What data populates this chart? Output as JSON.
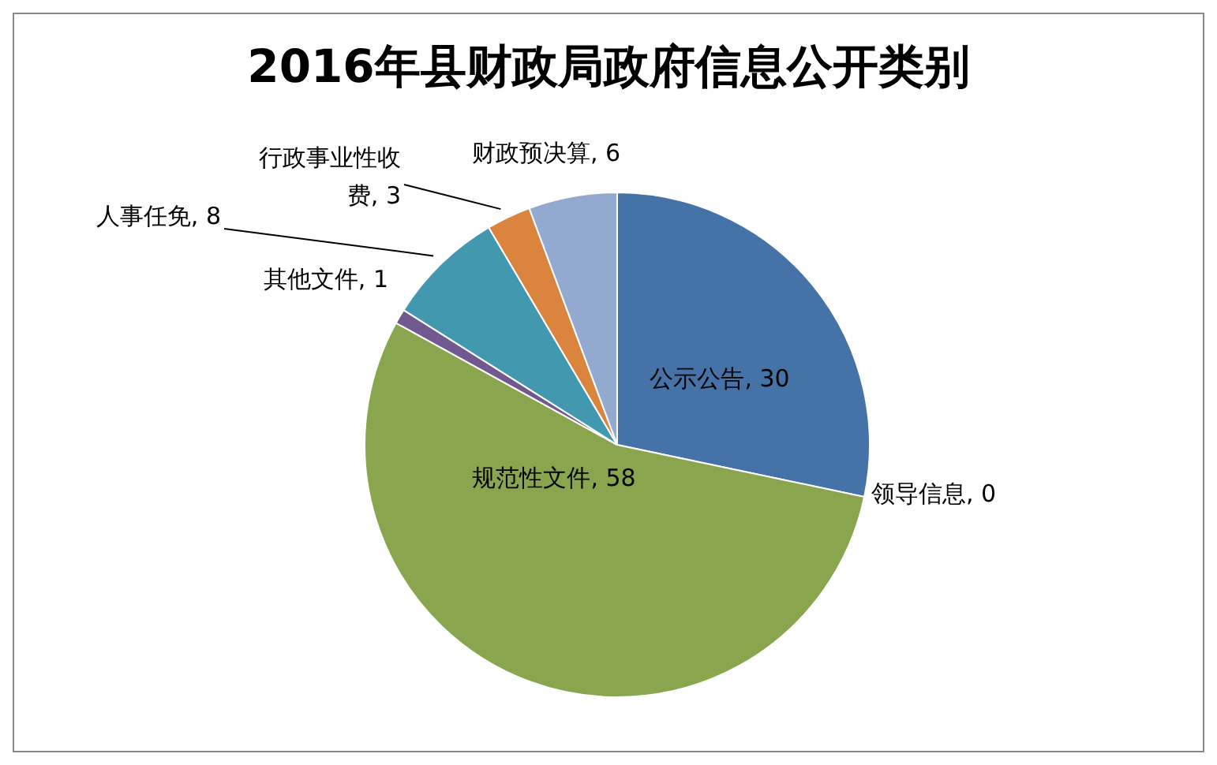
{
  "chart_data": {
    "type": "pie",
    "title": "2016年县财政局政府信息公开类别",
    "categories": [
      "公示公告",
      "领导信息",
      "规范性文件",
      "其他文件",
      "人事任免",
      "行政事业性收费",
      "财政预决算"
    ],
    "values": [
      30,
      0,
      58,
      1,
      8,
      3,
      6
    ],
    "value_labels": [
      ", 30",
      ", 0",
      ", 58",
      ", 1",
      ", 8",
      ", 3",
      ", 6"
    ],
    "colors": [
      "#4572a7",
      "#aa4643",
      "#89a54e",
      "#71588f",
      "#4198af",
      "#db843d",
      "#93a9cf"
    ],
    "legend": false
  }
}
